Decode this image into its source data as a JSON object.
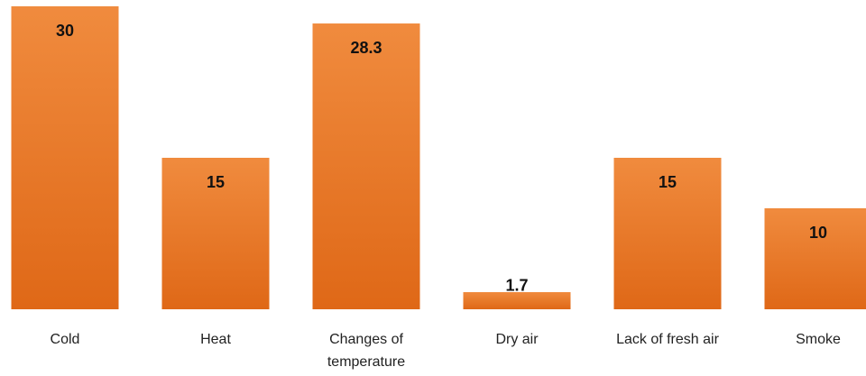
{
  "chart_data": {
    "type": "bar",
    "categories": [
      "Cold",
      "Heat",
      "Changes of temperature",
      "Dry air",
      "Lack of fresh air",
      "Smoke"
    ],
    "values": [
      30,
      15,
      28.3,
      1.7,
      15,
      10
    ],
    "color": "#ec7a2c"
  }
}
